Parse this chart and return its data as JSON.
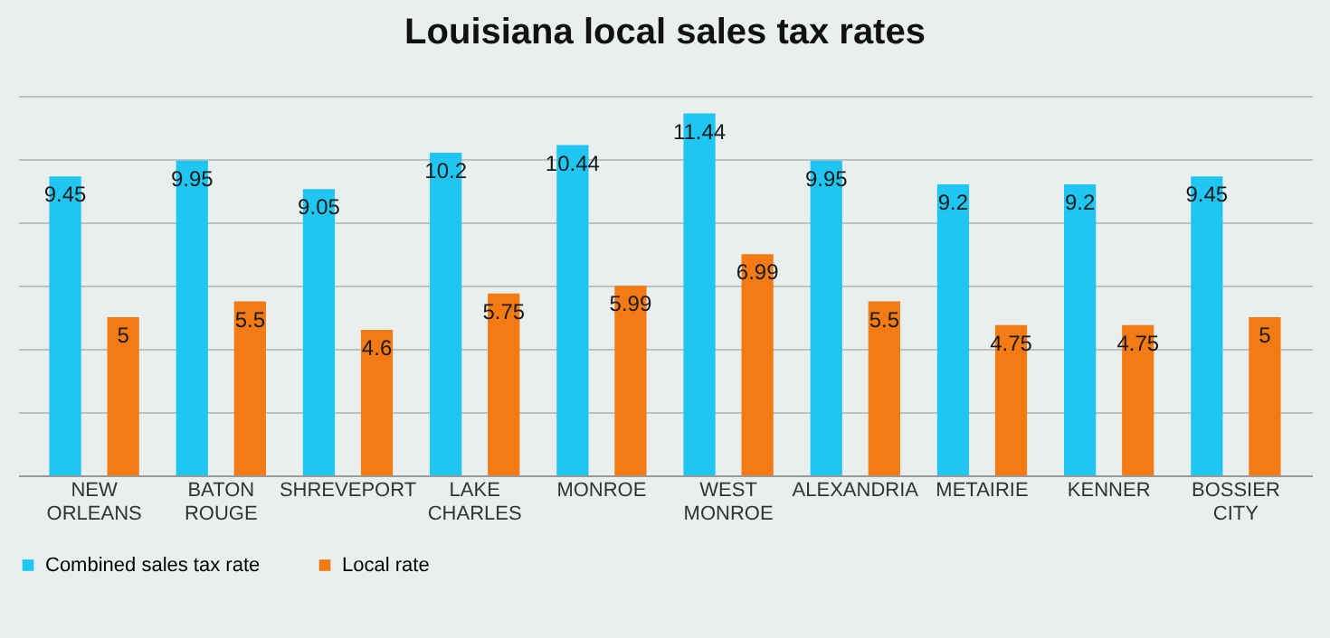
{
  "chart_data": {
    "type": "bar",
    "title": "Louisiana local sales tax rates",
    "categories": [
      "NEW ORLEANS",
      "BATON ROUGE",
      "SHREVEPORT",
      "LAKE CHARLES",
      "MONROE",
      "WEST MONROE",
      "ALEXANDRIA",
      "METAIRIE",
      "KENNER",
      "BOSSIER CITY"
    ],
    "series": [
      {
        "name": "Combined sales tax rate",
        "color": "#1fc6f2",
        "values": [
          9.45,
          9.95,
          9.05,
          10.2,
          10.44,
          11.44,
          9.95,
          9.2,
          9.2,
          9.45
        ]
      },
      {
        "name": "Local rate",
        "color": "#f47b13",
        "values": [
          5,
          5.5,
          4.6,
          5.75,
          5.99,
          6.99,
          5.5,
          4.75,
          4.75,
          5
        ]
      }
    ],
    "grid": "y",
    "tick_labels": "x",
    "legend": "bottom",
    "data_labels": true
  }
}
